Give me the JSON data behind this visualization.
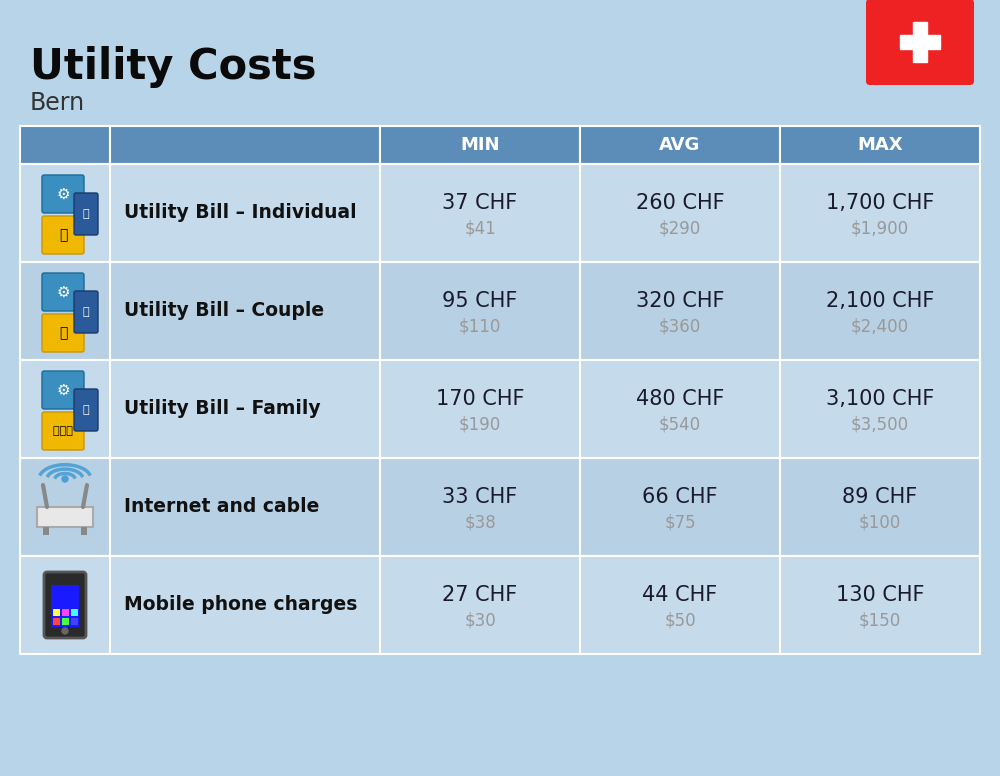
{
  "title": "Utility Costs",
  "subtitle": "Bern",
  "background_color": "#b8d4e8",
  "header_color": "#5b8db8",
  "header_text_color": "#ffffff",
  "row_color_odd": "#c5daea",
  "row_color_even": "#b8d0e4",
  "col_headers": [
    "MIN",
    "AVG",
    "MAX"
  ],
  "rows": [
    {
      "label": "Utility Bill – Individual",
      "min_chf": "37 CHF",
      "min_usd": "$41",
      "avg_chf": "260 CHF",
      "avg_usd": "$290",
      "max_chf": "1,700 CHF",
      "max_usd": "$1,900"
    },
    {
      "label": "Utility Bill – Couple",
      "min_chf": "95 CHF",
      "min_usd": "$110",
      "avg_chf": "320 CHF",
      "avg_usd": "$360",
      "max_chf": "2,100 CHF",
      "max_usd": "$2,400"
    },
    {
      "label": "Utility Bill – Family",
      "min_chf": "170 CHF",
      "min_usd": "$190",
      "avg_chf": "480 CHF",
      "avg_usd": "$540",
      "max_chf": "3,100 CHF",
      "max_usd": "$3,500"
    },
    {
      "label": "Internet and cable",
      "min_chf": "33 CHF",
      "min_usd": "$38",
      "avg_chf": "66 CHF",
      "avg_usd": "$75",
      "max_chf": "89 CHF",
      "max_usd": "$100"
    },
    {
      "label": "Mobile phone charges",
      "min_chf": "27 CHF",
      "min_usd": "$30",
      "avg_chf": "44 CHF",
      "avg_usd": "$50",
      "max_chf": "130 CHF",
      "max_usd": "$150"
    }
  ],
  "flag_red": "#ee2222",
  "flag_white": "#ffffff",
  "cell_text_color": "#1a1a2e",
  "usd_text_color": "#999999",
  "label_text_color": "#111111",
  "border_color": "#ffffff"
}
